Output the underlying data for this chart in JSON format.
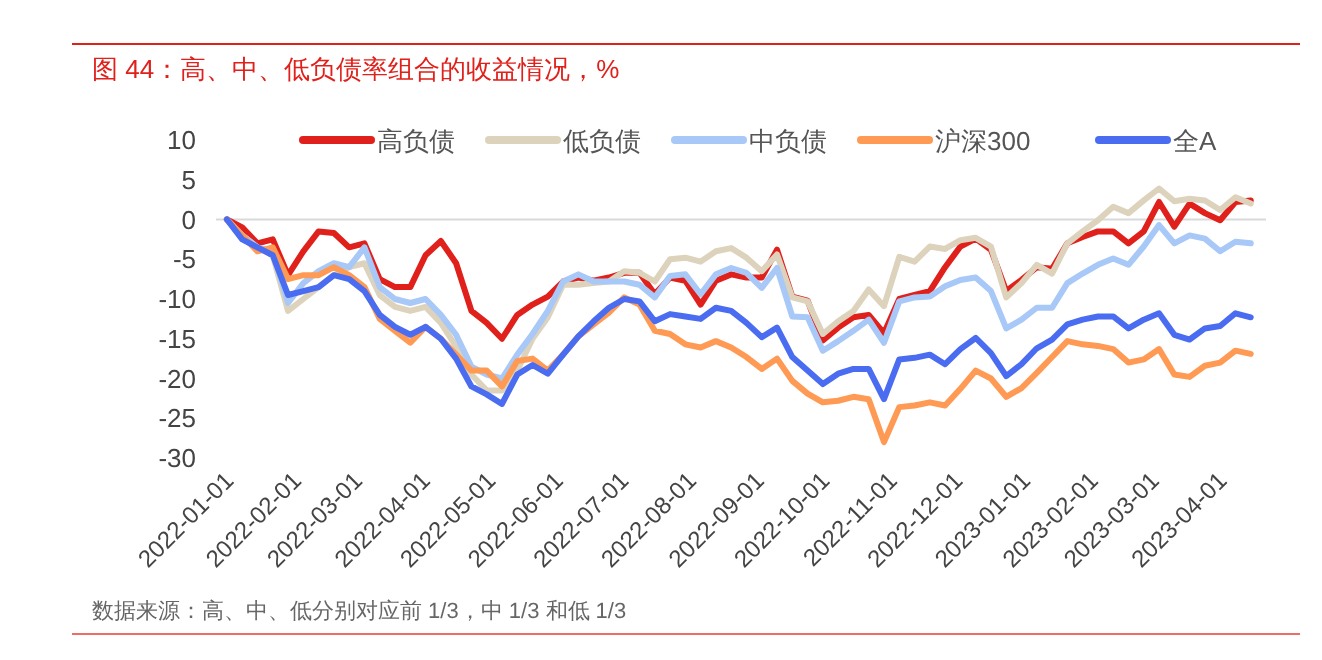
{
  "chart_data": {
    "type": "line",
    "title": "图 44：高、中、低负债率组合的收益情况，%",
    "annotations": [
      "数据来源：高、中、低分别对应前 1/3，中 1/3 和低 1/3"
    ],
    "x": [
      "2022-01-01",
      "2022-01-08",
      "2022-01-15",
      "2022-01-22",
      "2022-01-29",
      "2022-02-05",
      "2022-02-12",
      "2022-02-19",
      "2022-02-26",
      "2022-03-05",
      "2022-03-12",
      "2022-03-19",
      "2022-03-26",
      "2022-04-02",
      "2022-04-09",
      "2022-04-16",
      "2022-04-23",
      "2022-04-30",
      "2022-05-07",
      "2022-05-14",
      "2022-05-21",
      "2022-05-28",
      "2022-06-04",
      "2022-06-11",
      "2022-06-18",
      "2022-06-25",
      "2022-07-02",
      "2022-07-09",
      "2022-07-16",
      "2022-07-23",
      "2022-07-30",
      "2022-08-06",
      "2022-08-13",
      "2022-08-20",
      "2022-08-27",
      "2022-09-03",
      "2022-09-10",
      "2022-09-17",
      "2022-09-24",
      "2022-10-01",
      "2022-10-08",
      "2022-10-15",
      "2022-10-22",
      "2022-10-29",
      "2022-11-05",
      "2022-11-12",
      "2022-11-19",
      "2022-11-26",
      "2022-12-03",
      "2022-12-10",
      "2022-12-17",
      "2022-12-24",
      "2022-12-31",
      "2023-01-07",
      "2023-01-14",
      "2023-01-21",
      "2023-01-28",
      "2023-02-04",
      "2023-02-11",
      "2023-02-18",
      "2023-02-25",
      "2023-03-04",
      "2023-03-11",
      "2023-03-18",
      "2023-03-25",
      "2023-04-01",
      "2023-04-08",
      "2023-04-15"
    ],
    "series": [
      {
        "name": "高负债",
        "color": "#e0201b",
        "values": [
          0,
          -1,
          -3,
          -2.5,
          -7,
          -4,
          -1.5,
          -1.7,
          -3.5,
          -3,
          -7.5,
          -8.5,
          -8.5,
          -4.5,
          -2.7,
          -5.5,
          -11.5,
          -13,
          -15,
          -12,
          -10.7,
          -9.7,
          -7.8,
          -7.3,
          -7.7,
          -7.3,
          -6.7,
          -6.7,
          -9.4,
          -7.3,
          -7.7,
          -10.7,
          -7.7,
          -6.9,
          -7.3,
          -7.3,
          -3.8,
          -9.7,
          -10.2,
          -15.2,
          -13.6,
          -12.3,
          -12,
          -14.3,
          -10,
          -9.5,
          -9,
          -6,
          -3.4,
          -2.4,
          -3.8,
          -9,
          -7.6,
          -6,
          -6.2,
          -3,
          -2.2,
          -1.5,
          -1.5,
          -3,
          -1.5,
          2.2,
          -0.9,
          2,
          0.8,
          -0.1,
          2.2,
          2.4
        ]
      },
      {
        "name": "低负债",
        "color": "#ddd3bd",
        "values": [
          0,
          -2,
          -3.5,
          -4.5,
          -11.5,
          -10,
          -8.5,
          -7,
          -6,
          -5.5,
          -9.5,
          -11,
          -11.5,
          -11,
          -13,
          -16,
          -19.5,
          -21.5,
          -21.5,
          -19,
          -15,
          -12.3,
          -8.2,
          -8.2,
          -8,
          -7.8,
          -6.5,
          -6.7,
          -7.8,
          -5,
          -4.8,
          -5.3,
          -4,
          -3.6,
          -4.8,
          -6.5,
          -4.4,
          -9.8,
          -10.3,
          -14.4,
          -12.8,
          -11.5,
          -8.8,
          -10.9,
          -4.7,
          -5.3,
          -3.4,
          -3.7,
          -2.6,
          -2.3,
          -3.4,
          -9.8,
          -8,
          -5.7,
          -6.8,
          -3,
          -1.5,
          -0.1,
          1.6,
          0.8,
          2.4,
          3.9,
          2.3,
          2.6,
          2.4,
          1.2,
          2.8,
          2
        ]
      },
      {
        "name": "中负债",
        "color": "#a8c8f8",
        "values": [
          0,
          -2,
          -3.5,
          -4,
          -10.5,
          -8,
          -6.5,
          -5.5,
          -6,
          -3.5,
          -8.5,
          -10,
          -10.5,
          -10,
          -12,
          -14.5,
          -18.5,
          -19.5,
          -20,
          -17,
          -14.4,
          -11.5,
          -7.8,
          -6.9,
          -7.8,
          -7.8,
          -7.8,
          -8.2,
          -9.8,
          -7.1,
          -6.9,
          -9.4,
          -6.9,
          -6.1,
          -6.7,
          -8.6,
          -6.1,
          -12.2,
          -12.3,
          -16.5,
          -15.3,
          -14,
          -12.6,
          -15.5,
          -10.3,
          -9.8,
          -9.7,
          -8.4,
          -7.6,
          -7.3,
          -9,
          -13.7,
          -12.6,
          -11.1,
          -11.1,
          -8,
          -6.8,
          -5.7,
          -4.9,
          -5.7,
          -3.4,
          -0.7,
          -3,
          -2,
          -2.4,
          -4,
          -2.8,
          -3
        ]
      },
      {
        "name": "沪深300",
        "color": "#ff9a55",
        "values": [
          0,
          -2,
          -4,
          -3.5,
          -7.5,
          -7,
          -7,
          -6,
          -7,
          -8.5,
          -12.5,
          -14,
          -15.5,
          -13.5,
          -15,
          -17,
          -19,
          -19,
          -21,
          -17.8,
          -17.5,
          -19,
          -17,
          -14.7,
          -13.2,
          -11.7,
          -9.8,
          -10.7,
          -14,
          -14.4,
          -15.7,
          -16.1,
          -15.3,
          -16.1,
          -17.3,
          -18.8,
          -17.5,
          -20.3,
          -21.9,
          -23,
          -22.8,
          -22.3,
          -22.6,
          -28,
          -23.6,
          -23.4,
          -23,
          -23.4,
          -21.3,
          -19,
          -20,
          -22.3,
          -21.2,
          -19.3,
          -17.3,
          -15.3,
          -15.7,
          -15.9,
          -16.3,
          -18,
          -17.6,
          -16.3,
          -19.5,
          -19.8,
          -18.4,
          -18,
          -16.5,
          -16.9
        ]
      },
      {
        "name": "全A",
        "color": "#4a6cf0",
        "values": [
          0,
          -2.5,
          -3.5,
          -4.5,
          -9.5,
          -9,
          -8.5,
          -7,
          -7.5,
          -9,
          -12,
          -13.5,
          -14.5,
          -13.5,
          -15,
          -17.5,
          -21,
          -22,
          -23.2,
          -19.5,
          -18.3,
          -19.4,
          -17,
          -14.7,
          -12.8,
          -11.1,
          -10,
          -10.3,
          -12.8,
          -11.9,
          -12.2,
          -12.5,
          -11.1,
          -11.5,
          -13,
          -14.8,
          -13.6,
          -17.3,
          -19,
          -20.7,
          -19.4,
          -18.8,
          -18.8,
          -22.6,
          -17.6,
          -17.4,
          -17,
          -18.2,
          -16.3,
          -14.9,
          -16.8,
          -19.7,
          -18.2,
          -16.2,
          -15.1,
          -13.2,
          -12.6,
          -12.2,
          -12.2,
          -13.7,
          -12.6,
          -11.8,
          -14.5,
          -15.1,
          -13.7,
          -13.4,
          -11.8,
          -12.3
        ]
      }
    ],
    "xlim": [
      "2021-12-27",
      "2023-04-22"
    ],
    "xticks": [
      "2022-01-01",
      "2022-02-01",
      "2022-03-01",
      "2022-04-01",
      "2022-05-01",
      "2022-06-01",
      "2022-07-01",
      "2022-08-01",
      "2022-09-01",
      "2022-10-01",
      "2022-11-01",
      "2022-12-01",
      "2023-01-01",
      "2023-02-01",
      "2023-03-01",
      "2023-04-01"
    ],
    "ylim": [
      -30,
      10
    ],
    "yticks": [
      10,
      5,
      0,
      -5,
      -10,
      -15,
      -20,
      -25,
      -30
    ],
    "legend": "top",
    "line_style": "solid",
    "marker": "none"
  }
}
